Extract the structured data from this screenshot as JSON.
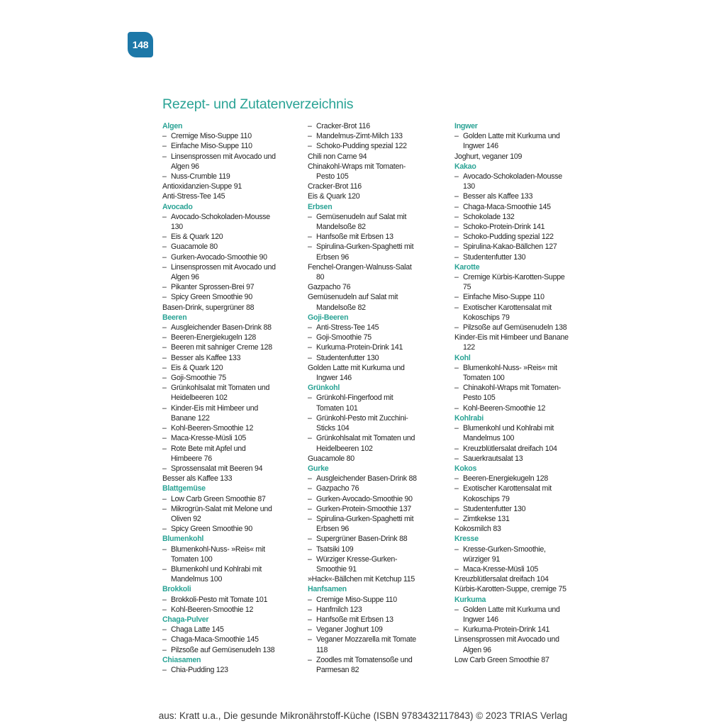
{
  "page_number": "148",
  "title": "Rezept- und Zutatenverzeichnis",
  "dash": "–",
  "columns": [
    [
      {
        "t": "h",
        "text": "Algen"
      },
      {
        "t": "s",
        "text": "Cremige Miso-Suppe  110"
      },
      {
        "t": "s",
        "text": "Einfache Miso-Suppe  110"
      },
      {
        "t": "s",
        "text": "Linsensprossen mit Avocado und\nAlgen  96"
      },
      {
        "t": "s",
        "text": "Nuss-Crumble  119"
      },
      {
        "t": "m",
        "text": "Antioxidanzien-Suppe  91"
      },
      {
        "t": "m",
        "text": "Anti-Stress-Tee  145"
      },
      {
        "t": "h",
        "text": "Avocado"
      },
      {
        "t": "s",
        "text": "Avocado-Schokoladen-Mousse\n130"
      },
      {
        "t": "s",
        "text": "Eis & Quark  120"
      },
      {
        "t": "s",
        "text": "Guacamole  80"
      },
      {
        "t": "s",
        "text": "Gurken-Avocado-Smoothie  90"
      },
      {
        "t": "s",
        "text": "Linsensprossen mit Avocado und\nAlgen  96"
      },
      {
        "t": "s",
        "text": "Pikanter Sprossen-Brei  97"
      },
      {
        "t": "s",
        "text": "Spicy Green Smoothie  90"
      },
      {
        "t": "m",
        "text": "Basen-Drink, supergrüner  88"
      },
      {
        "t": "h",
        "text": "Beeren"
      },
      {
        "t": "s",
        "text": "Ausgleichender Basen-Drink  88"
      },
      {
        "t": "s",
        "text": "Beeren-Energiekugeln  128"
      },
      {
        "t": "s",
        "text": "Beeren mit sahniger Creme  128"
      },
      {
        "t": "s",
        "text": "Besser als Kaffee  133"
      },
      {
        "t": "s",
        "text": "Eis & Quark  120"
      },
      {
        "t": "s",
        "text": "Goji-Smoothie  75"
      },
      {
        "t": "s",
        "text": "Grünkohlsalat mit Tomaten und\nHeidelbeeren  102"
      },
      {
        "t": "s",
        "text": "Kinder-Eis mit Himbeer und\nBanane  122"
      },
      {
        "t": "s",
        "text": "Kohl-Beeren-Smoothie  12"
      },
      {
        "t": "s",
        "text": "Maca-Kresse-Müsli  105"
      },
      {
        "t": "s",
        "text": "Rote Bete mit Apfel und\nHimbeere  76"
      },
      {
        "t": "s",
        "text": "Sprossensalat mit Beeren  94"
      },
      {
        "t": "m",
        "text": "Besser als Kaffee  133"
      },
      {
        "t": "h",
        "text": "Blattgemüse"
      },
      {
        "t": "s",
        "text": "Low Carb Green Smoothie  87"
      },
      {
        "t": "s",
        "text": "Mikrogrün-Salat mit Melone und\nOliven  92"
      },
      {
        "t": "s",
        "text": "Spicy Green Smoothie  90"
      },
      {
        "t": "h",
        "text": "Blumenkohl"
      },
      {
        "t": "s",
        "text": "Blumenkohl-Nuss- »Reis« mit\nTomaten  100"
      },
      {
        "t": "s",
        "text": "Blumenkohl und Kohlrabi mit\nMandelmus  100"
      },
      {
        "t": "h",
        "text": "Brokkoli"
      },
      {
        "t": "s",
        "text": "Brokkoli-Pesto mit Tomate  101"
      },
      {
        "t": "s",
        "text": "Kohl-Beeren-Smoothie  12"
      },
      {
        "t": "h",
        "text": "Chaga-Pulver"
      },
      {
        "t": "s",
        "text": "Chaga Latte  145"
      },
      {
        "t": "s",
        "text": "Chaga-Maca-Smoothie  145"
      },
      {
        "t": "s",
        "text": "Pilzsoße auf Gemüsenudeln  138"
      },
      {
        "t": "h",
        "text": "Chiasamen"
      },
      {
        "t": "s",
        "text": "Chia-Pudding  123"
      }
    ],
    [
      {
        "t": "s",
        "text": "Cracker-Brot  116"
      },
      {
        "t": "s",
        "text": "Mandelmus-Zimt-Milch  133"
      },
      {
        "t": "s",
        "text": "Schoko-Pudding spezial  122"
      },
      {
        "t": "m",
        "text": "Chili non Carne  94"
      },
      {
        "t": "m",
        "text": "Chinakohl-Wraps mit Tomaten-\nPesto  105"
      },
      {
        "t": "m",
        "text": "Cracker-Brot  116"
      },
      {
        "t": "m",
        "text": "Eis & Quark  120"
      },
      {
        "t": "h",
        "text": "Erbsen"
      },
      {
        "t": "s",
        "text": "Gemüsenudeln auf Salat mit\nMandelsoße  82"
      },
      {
        "t": "s",
        "text": "Hanfsoße mit Erbsen  13"
      },
      {
        "t": "s",
        "text": "Spirulina-Gurken-Spaghetti mit\nErbsen  96"
      },
      {
        "t": "m",
        "text": "Fenchel-Orangen-Walnuss-Salat\n80"
      },
      {
        "t": "m",
        "text": "Gazpacho  76"
      },
      {
        "t": "m",
        "text": "Gemüsenudeln auf Salat mit\nMandelsoße  82"
      },
      {
        "t": "h",
        "text": "Goji-Beeren"
      },
      {
        "t": "s",
        "text": "Anti-Stress-Tee  145"
      },
      {
        "t": "s",
        "text": "Goji-Smoothie  75"
      },
      {
        "t": "s",
        "text": "Kurkuma-Protein-Drink  141"
      },
      {
        "t": "s",
        "text": "Studentenfutter  130"
      },
      {
        "t": "m",
        "text": "Golden Latte mit Kurkuma und\nIngwer  146"
      },
      {
        "t": "h",
        "text": "Grünkohl"
      },
      {
        "t": "s",
        "text": "Grünkohl-Fingerfood mit\nTomaten  101"
      },
      {
        "t": "s",
        "text": "Grünkohl-Pesto mit Zucchini-\nSticks  104"
      },
      {
        "t": "s",
        "text": "Grünkohlsalat mit Tomaten und\nHeidelbeeren  102"
      },
      {
        "t": "m",
        "text": "Guacamole  80"
      },
      {
        "t": "h",
        "text": "Gurke"
      },
      {
        "t": "s",
        "text": "Ausgleichender Basen-Drink  88"
      },
      {
        "t": "s",
        "text": "Gazpacho  76"
      },
      {
        "t": "s",
        "text": "Gurken-Avocado-Smoothie  90"
      },
      {
        "t": "s",
        "text": "Gurken-Protein-Smoothie  137"
      },
      {
        "t": "s",
        "text": "Spirulina-Gurken-Spaghetti mit\nErbsen  96"
      },
      {
        "t": "s",
        "text": "Supergrüner Basen-Drink  88"
      },
      {
        "t": "s",
        "text": "Tsatsiki  109"
      },
      {
        "t": "s",
        "text": "Würziger Kresse-Gurken-\nSmoothie  91"
      },
      {
        "t": "m",
        "text": "»Hack«-Bällchen mit Ketchup  115"
      },
      {
        "t": "h",
        "text": "Hanfsamen"
      },
      {
        "t": "s",
        "text": "Cremige Miso-Suppe  110"
      },
      {
        "t": "s",
        "text": "Hanfmilch  123"
      },
      {
        "t": "s",
        "text": "Hanfsoße mit Erbsen  13"
      },
      {
        "t": "s",
        "text": "Veganer Joghurt  109"
      },
      {
        "t": "s",
        "text": "Veganer Mozzarella mit Tomate\n118"
      },
      {
        "t": "s",
        "text": "Zoodles mit Tomatensoße und\nParmesan  82"
      }
    ],
    [
      {
        "t": "h",
        "text": "Ingwer"
      },
      {
        "t": "s",
        "text": "Golden Latte mit Kurkuma und\nIngwer  146"
      },
      {
        "t": "m",
        "text": "Joghurt, veganer  109"
      },
      {
        "t": "h",
        "text": "Kakao"
      },
      {
        "t": "s",
        "text": "Avocado-Schokoladen-Mousse\n130"
      },
      {
        "t": "s",
        "text": "Besser als Kaffee  133"
      },
      {
        "t": "s",
        "text": "Chaga-Maca-Smoothie  145"
      },
      {
        "t": "s",
        "text": "Schokolade  132"
      },
      {
        "t": "s",
        "text": "Schoko-Protein-Drink  141"
      },
      {
        "t": "s",
        "text": "Schoko-Pudding spezial  122"
      },
      {
        "t": "s",
        "text": "Spirulina-Kakao-Bällchen  127"
      },
      {
        "t": "s",
        "text": "Studentenfutter  130"
      },
      {
        "t": "h",
        "text": "Karotte"
      },
      {
        "t": "s",
        "text": "Cremige Kürbis-Karotten-Suppe\n75"
      },
      {
        "t": "s",
        "text": "Einfache Miso-Suppe  110"
      },
      {
        "t": "s",
        "text": "Exotischer Karottensalat mit\nKokoschips  79"
      },
      {
        "t": "s",
        "text": "Pilzsoße auf Gemüsenudeln  138"
      },
      {
        "t": "m",
        "text": "Kinder-Eis mit Himbeer und Banane\n122"
      },
      {
        "t": "h",
        "text": "Kohl"
      },
      {
        "t": "s",
        "text": "Blumenkohl-Nuss- »Reis« mit\nTomaten  100"
      },
      {
        "t": "s",
        "text": "Chinakohl-Wraps mit Tomaten-\nPesto  105"
      },
      {
        "t": "s",
        "text": "Kohl-Beeren-Smoothie  12"
      },
      {
        "t": "h",
        "text": "Kohlrabi"
      },
      {
        "t": "s",
        "text": "Blumenkohl und Kohlrabi mit\nMandelmus  100"
      },
      {
        "t": "s",
        "text": "Kreuzblütlersalat dreifach  104"
      },
      {
        "t": "s",
        "text": "Sauerkrautsalat  13"
      },
      {
        "t": "h",
        "text": "Kokos"
      },
      {
        "t": "s",
        "text": "Beeren-Energiekugeln  128"
      },
      {
        "t": "s",
        "text": "Exotischer Karottensalat mit\nKokoschips  79"
      },
      {
        "t": "s",
        "text": "Studentenfutter  130"
      },
      {
        "t": "s",
        "text": "Zimtkekse  131"
      },
      {
        "t": "m",
        "text": "Kokosmilch  83"
      },
      {
        "t": "h",
        "text": "Kresse"
      },
      {
        "t": "s",
        "text": "Kresse-Gurken-Smoothie,\nwürziger  91"
      },
      {
        "t": "s",
        "text": "Maca-Kresse-Müsli  105"
      },
      {
        "t": "m",
        "text": "Kreuzblütlersalat dreifach  104"
      },
      {
        "t": "m",
        "text": "Kürbis-Karotten-Suppe, cremige  75"
      },
      {
        "t": "h",
        "text": "Kurkuma"
      },
      {
        "t": "s",
        "text": "Golden Latte mit Kurkuma und\nIngwer  146"
      },
      {
        "t": "s",
        "text": "Kurkuma-Protein-Drink  141"
      },
      {
        "t": "m",
        "text": "Linsensprossen mit Avocado und\nAlgen  96"
      },
      {
        "t": "m",
        "text": "Low Carb Green Smoothie  87"
      }
    ]
  ],
  "footer": "aus: Kratt u.a., Die gesunde Mikronährstoff-Küche (ISBN 9783432117843) © 2023 TRIAS Verlag",
  "colors": {
    "accent": "#2aa395",
    "badge": "#1d78a8"
  }
}
